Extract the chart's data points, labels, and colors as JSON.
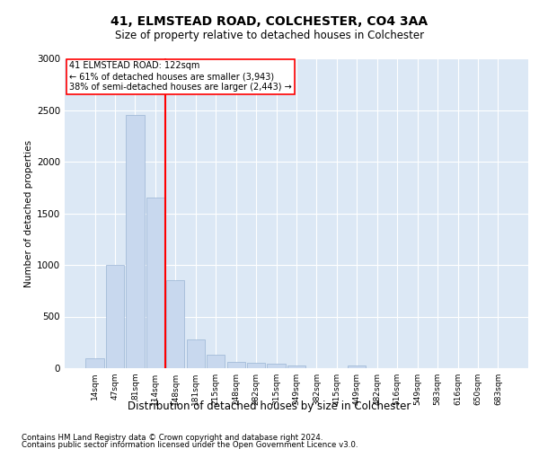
{
  "title1": "41, ELMSTEAD ROAD, COLCHESTER, CO4 3AA",
  "title2": "Size of property relative to detached houses in Colchester",
  "xlabel": "Distribution of detached houses by size in Colchester",
  "ylabel": "Number of detached properties",
  "categories": [
    "14sqm",
    "47sqm",
    "81sqm",
    "114sqm",
    "148sqm",
    "181sqm",
    "215sqm",
    "248sqm",
    "282sqm",
    "315sqm",
    "349sqm",
    "382sqm",
    "415sqm",
    "449sqm",
    "482sqm",
    "516sqm",
    "549sqm",
    "583sqm",
    "616sqm",
    "650sqm",
    "683sqm"
  ],
  "values": [
    100,
    1000,
    2450,
    1650,
    850,
    275,
    130,
    60,
    50,
    40,
    30,
    0,
    0,
    30,
    0,
    0,
    0,
    0,
    0,
    0,
    0
  ],
  "bar_color": "#c8d8ee",
  "bar_edge_color": "#9ab4d4",
  "red_line_x": 3.5,
  "red_line_label": "41 ELMSTEAD ROAD: 122sqm",
  "annotation_line1": "← 61% of detached houses are smaller (3,943)",
  "annotation_line2": "38% of semi-detached houses are larger (2,443) →",
  "ylim": [
    0,
    3000
  ],
  "yticks": [
    0,
    500,
    1000,
    1500,
    2000,
    2500,
    3000
  ],
  "bg_color": "#dce8f5",
  "footer1": "Contains HM Land Registry data © Crown copyright and database right 2024.",
  "footer2": "Contains public sector information licensed under the Open Government Licence v3.0."
}
